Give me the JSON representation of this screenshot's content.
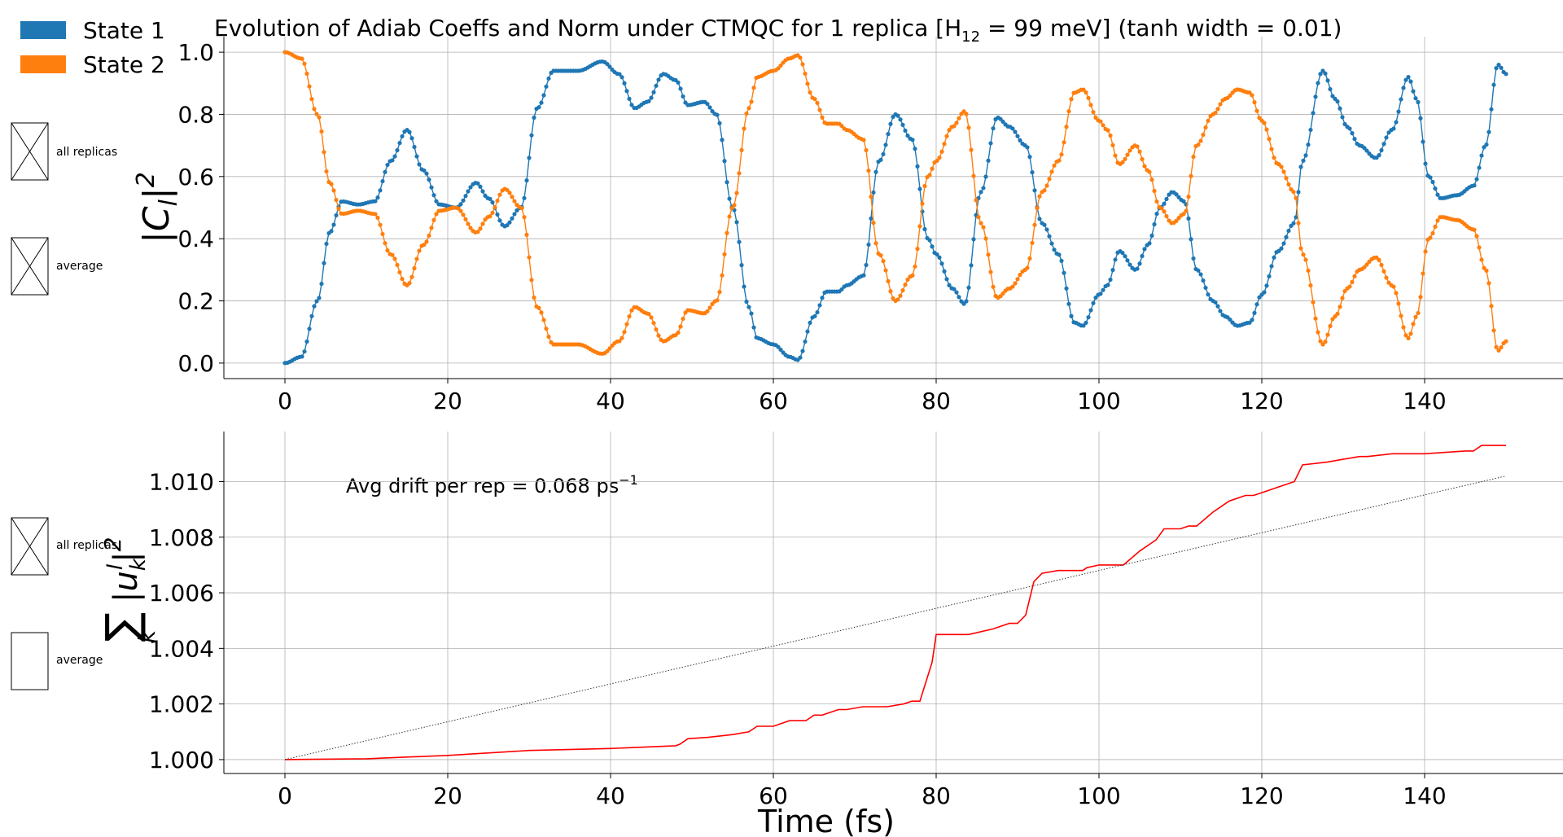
{
  "legend": {
    "items": [
      {
        "label": "State 1",
        "color": "#1f77b4"
      },
      {
        "label": "State 2",
        "color": "#ff7f0e"
      }
    ]
  },
  "controls": {
    "top": [
      {
        "label": "all replicas",
        "checked": true
      },
      {
        "label": "average",
        "checked": true
      }
    ],
    "bottom": [
      {
        "label": "all replicas",
        "checked": true
      },
      {
        "label": "average",
        "checked": false
      }
    ]
  },
  "chart_data": [
    {
      "type": "scatter",
      "title_main": "Evolution of Adiab Coeffs and Norm under CTMQC for 1 replica [H",
      "title_sub": "12",
      "title_rest": " = 99 meV]   (tanh width = 0.01)",
      "ylabel": "|C_l|^2",
      "xlim": [
        -7.5,
        157
      ],
      "ylim": [
        -0.05,
        1.05
      ],
      "xticks": [
        0,
        20,
        40,
        60,
        80,
        100,
        120,
        140
      ],
      "yticks": [
        0.0,
        0.2,
        0.4,
        0.6,
        0.8,
        1.0
      ],
      "ytick_labels": [
        "0.0",
        "0.2",
        "0.4",
        "0.6",
        "0.8",
        "1.0"
      ],
      "grid": true,
      "series": [
        {
          "name": "State 1",
          "color": "#1f77b4",
          "keypoints": [
            [
              0,
              0.0
            ],
            [
              2,
              0.02
            ],
            [
              4,
              0.2
            ],
            [
              5.5,
              0.42
            ],
            [
              7,
              0.52
            ],
            [
              9,
              0.51
            ],
            [
              11,
              0.52
            ],
            [
              13,
              0.65
            ],
            [
              15,
              0.75
            ],
            [
              17,
              0.62
            ],
            [
              19,
              0.51
            ],
            [
              21,
              0.5
            ],
            [
              23.5,
              0.58
            ],
            [
              25,
              0.53
            ],
            [
              27,
              0.44
            ],
            [
              29,
              0.5
            ],
            [
              31,
              0.82
            ],
            [
              33,
              0.94
            ],
            [
              36,
              0.94
            ],
            [
              39,
              0.97
            ],
            [
              41,
              0.93
            ],
            [
              43,
              0.82
            ],
            [
              44.5,
              0.84
            ],
            [
              46.5,
              0.93
            ],
            [
              48,
              0.91
            ],
            [
              49.5,
              0.83
            ],
            [
              51.5,
              0.84
            ],
            [
              53,
              0.8
            ],
            [
              55,
              0.5
            ],
            [
              57,
              0.18
            ],
            [
              58,
              0.08
            ],
            [
              60,
              0.06
            ],
            [
              62,
              0.02
            ],
            [
              63,
              0.01
            ],
            [
              65,
              0.15
            ],
            [
              66.5,
              0.23
            ],
            [
              68,
              0.23
            ],
            [
              69,
              0.25
            ],
            [
              71,
              0.28
            ],
            [
              73,
              0.65
            ],
            [
              75,
              0.8
            ],
            [
              77,
              0.72
            ],
            [
              79,
              0.4
            ],
            [
              80,
              0.35
            ],
            [
              82,
              0.24
            ],
            [
              83.5,
              0.19
            ],
            [
              85.5,
              0.55
            ],
            [
              87.5,
              0.79
            ],
            [
              89,
              0.76
            ],
            [
              91,
              0.7
            ],
            [
              93,
              0.45
            ],
            [
              95,
              0.35
            ],
            [
              97,
              0.13
            ],
            [
              98,
              0.12
            ],
            [
              100,
              0.22
            ],
            [
              101,
              0.25
            ],
            [
              102.5,
              0.36
            ],
            [
              104.5,
              0.3
            ],
            [
              106,
              0.38
            ],
            [
              107.5,
              0.5
            ],
            [
              109,
              0.55
            ],
            [
              110.5,
              0.52
            ],
            [
              112,
              0.3
            ],
            [
              114,
              0.2
            ],
            [
              115.5,
              0.15
            ],
            [
              117,
              0.12
            ],
            [
              118.5,
              0.13
            ],
            [
              120,
              0.22
            ],
            [
              122,
              0.36
            ],
            [
              124,
              0.45
            ],
            [
              125,
              0.65
            ],
            [
              127.5,
              0.94
            ],
            [
              129,
              0.85
            ],
            [
              130.5,
              0.76
            ],
            [
              132,
              0.7
            ],
            [
              134,
              0.66
            ],
            [
              136,
              0.75
            ],
            [
              138,
              0.92
            ],
            [
              139,
              0.85
            ],
            [
              140.5,
              0.6
            ],
            [
              142,
              0.53
            ],
            [
              144,
              0.54
            ],
            [
              146,
              0.57
            ],
            [
              147.5,
              0.7
            ],
            [
              149,
              0.96
            ],
            [
              150,
              0.93
            ]
          ]
        },
        {
          "name": "State 2",
          "color": "#ff7f0e",
          "keypoints": [
            [
              0,
              1.0
            ],
            [
              2,
              0.98
            ],
            [
              4,
              0.8
            ],
            [
              5.5,
              0.58
            ],
            [
              7,
              0.48
            ],
            [
              9,
              0.49
            ],
            [
              11,
              0.48
            ],
            [
              13,
              0.35
            ],
            [
              15,
              0.25
            ],
            [
              17,
              0.38
            ],
            [
              19,
              0.49
            ],
            [
              21,
              0.5
            ],
            [
              23.5,
              0.42
            ],
            [
              25,
              0.47
            ],
            [
              27,
              0.56
            ],
            [
              29,
              0.5
            ],
            [
              31,
              0.18
            ],
            [
              33,
              0.06
            ],
            [
              36,
              0.06
            ],
            [
              39,
              0.03
            ],
            [
              41,
              0.07
            ],
            [
              43,
              0.18
            ],
            [
              44.5,
              0.16
            ],
            [
              46.5,
              0.07
            ],
            [
              48,
              0.09
            ],
            [
              49.5,
              0.17
            ],
            [
              51.5,
              0.16
            ],
            [
              53,
              0.2
            ],
            [
              55,
              0.5
            ],
            [
              57,
              0.82
            ],
            [
              58,
              0.92
            ],
            [
              60,
              0.94
            ],
            [
              62,
              0.98
            ],
            [
              63,
              0.99
            ],
            [
              65,
              0.85
            ],
            [
              66.5,
              0.77
            ],
            [
              68,
              0.77
            ],
            [
              69,
              0.75
            ],
            [
              71,
              0.72
            ],
            [
              73,
              0.35
            ],
            [
              75,
              0.2
            ],
            [
              77,
              0.28
            ],
            [
              79,
              0.6
            ],
            [
              80,
              0.65
            ],
            [
              82,
              0.76
            ],
            [
              83.5,
              0.81
            ],
            [
              85.5,
              0.45
            ],
            [
              87.5,
              0.21
            ],
            [
              89,
              0.24
            ],
            [
              91,
              0.3
            ],
            [
              93,
              0.55
            ],
            [
              95,
              0.65
            ],
            [
              97,
              0.87
            ],
            [
              98,
              0.88
            ],
            [
              100,
              0.78
            ],
            [
              101,
              0.75
            ],
            [
              102.5,
              0.64
            ],
            [
              104.5,
              0.7
            ],
            [
              106,
              0.62
            ],
            [
              107.5,
              0.5
            ],
            [
              109,
              0.45
            ],
            [
              110.5,
              0.48
            ],
            [
              112,
              0.7
            ],
            [
              114,
              0.8
            ],
            [
              115.5,
              0.85
            ],
            [
              117,
              0.88
            ],
            [
              118.5,
              0.87
            ],
            [
              120,
              0.78
            ],
            [
              122,
              0.64
            ],
            [
              124,
              0.55
            ],
            [
              125,
              0.35
            ],
            [
              127.5,
              0.06
            ],
            [
              129,
              0.15
            ],
            [
              130.5,
              0.24
            ],
            [
              132,
              0.3
            ],
            [
              134,
              0.34
            ],
            [
              136,
              0.25
            ],
            [
              138,
              0.08
            ],
            [
              139,
              0.15
            ],
            [
              140.5,
              0.4
            ],
            [
              142,
              0.47
            ],
            [
              144,
              0.46
            ],
            [
              146,
              0.43
            ],
            [
              147.5,
              0.3
            ],
            [
              149,
              0.04
            ],
            [
              150,
              0.07
            ]
          ]
        }
      ]
    },
    {
      "type": "line",
      "xlabel": "Time (fs)",
      "ylabel": "Σ_k |u_k^l|^2",
      "annotation": "Avg drift per rep = 0.068 ps",
      "annotation_sup": "−1",
      "xlim": [
        -7.5,
        157
      ],
      "ylim": [
        0.9995,
        1.0118
      ],
      "xticks": [
        0,
        20,
        40,
        60,
        80,
        100,
        120,
        140
      ],
      "yticks": [
        1.0,
        1.002,
        1.004,
        1.006,
        1.008,
        1.01
      ],
      "ytick_labels": [
        "1.000",
        "1.002",
        "1.004",
        "1.006",
        "1.008",
        "1.010"
      ],
      "grid": true,
      "series": [
        {
          "name": "",
          "color": "#ff0000",
          "style": "solid",
          "x": [
            0,
            10,
            20,
            30,
            40,
            48,
            48.5,
            49.5,
            52,
            55,
            57,
            58,
            60,
            62,
            64,
            65,
            66,
            68,
            69,
            71,
            74,
            76,
            77,
            78,
            79.5,
            80,
            84,
            87,
            89,
            90,
            91,
            92,
            93,
            95,
            98,
            98.5,
            100,
            103,
            105,
            106,
            107,
            108,
            110,
            111,
            112,
            114,
            115,
            116,
            118,
            119,
            120,
            123,
            124,
            125,
            128,
            130,
            132,
            133,
            136,
            140,
            145,
            146,
            147,
            150
          ],
          "y": [
            1.0,
            1.00003,
            1.00015,
            1.00033,
            1.0004,
            1.0005,
            1.00055,
            1.00075,
            1.0008,
            1.0009,
            1.001,
            1.0012,
            1.0012,
            1.0014,
            1.0014,
            1.0016,
            1.0016,
            1.0018,
            1.0018,
            1.0019,
            1.0019,
            1.002,
            1.0021,
            1.0021,
            1.0035,
            1.0045,
            1.0045,
            1.0047,
            1.0049,
            1.0049,
            1.0052,
            1.0064,
            1.0067,
            1.0068,
            1.0068,
            1.0069,
            1.007,
            1.007,
            1.0075,
            1.0077,
            1.0079,
            1.0083,
            1.0083,
            1.0084,
            1.0084,
            1.0089,
            1.0091,
            1.0093,
            1.0095,
            1.0095,
            1.0096,
            1.0099,
            1.01,
            1.0106,
            1.0107,
            1.0108,
            1.0109,
            1.0109,
            1.011,
            1.011,
            1.0111,
            1.0111,
            1.0113,
            1.0113
          ]
        },
        {
          "name": "",
          "color": "#333333",
          "style": "dotted",
          "x": [
            0,
            150
          ],
          "y": [
            1.0,
            1.0102
          ]
        }
      ]
    }
  ]
}
